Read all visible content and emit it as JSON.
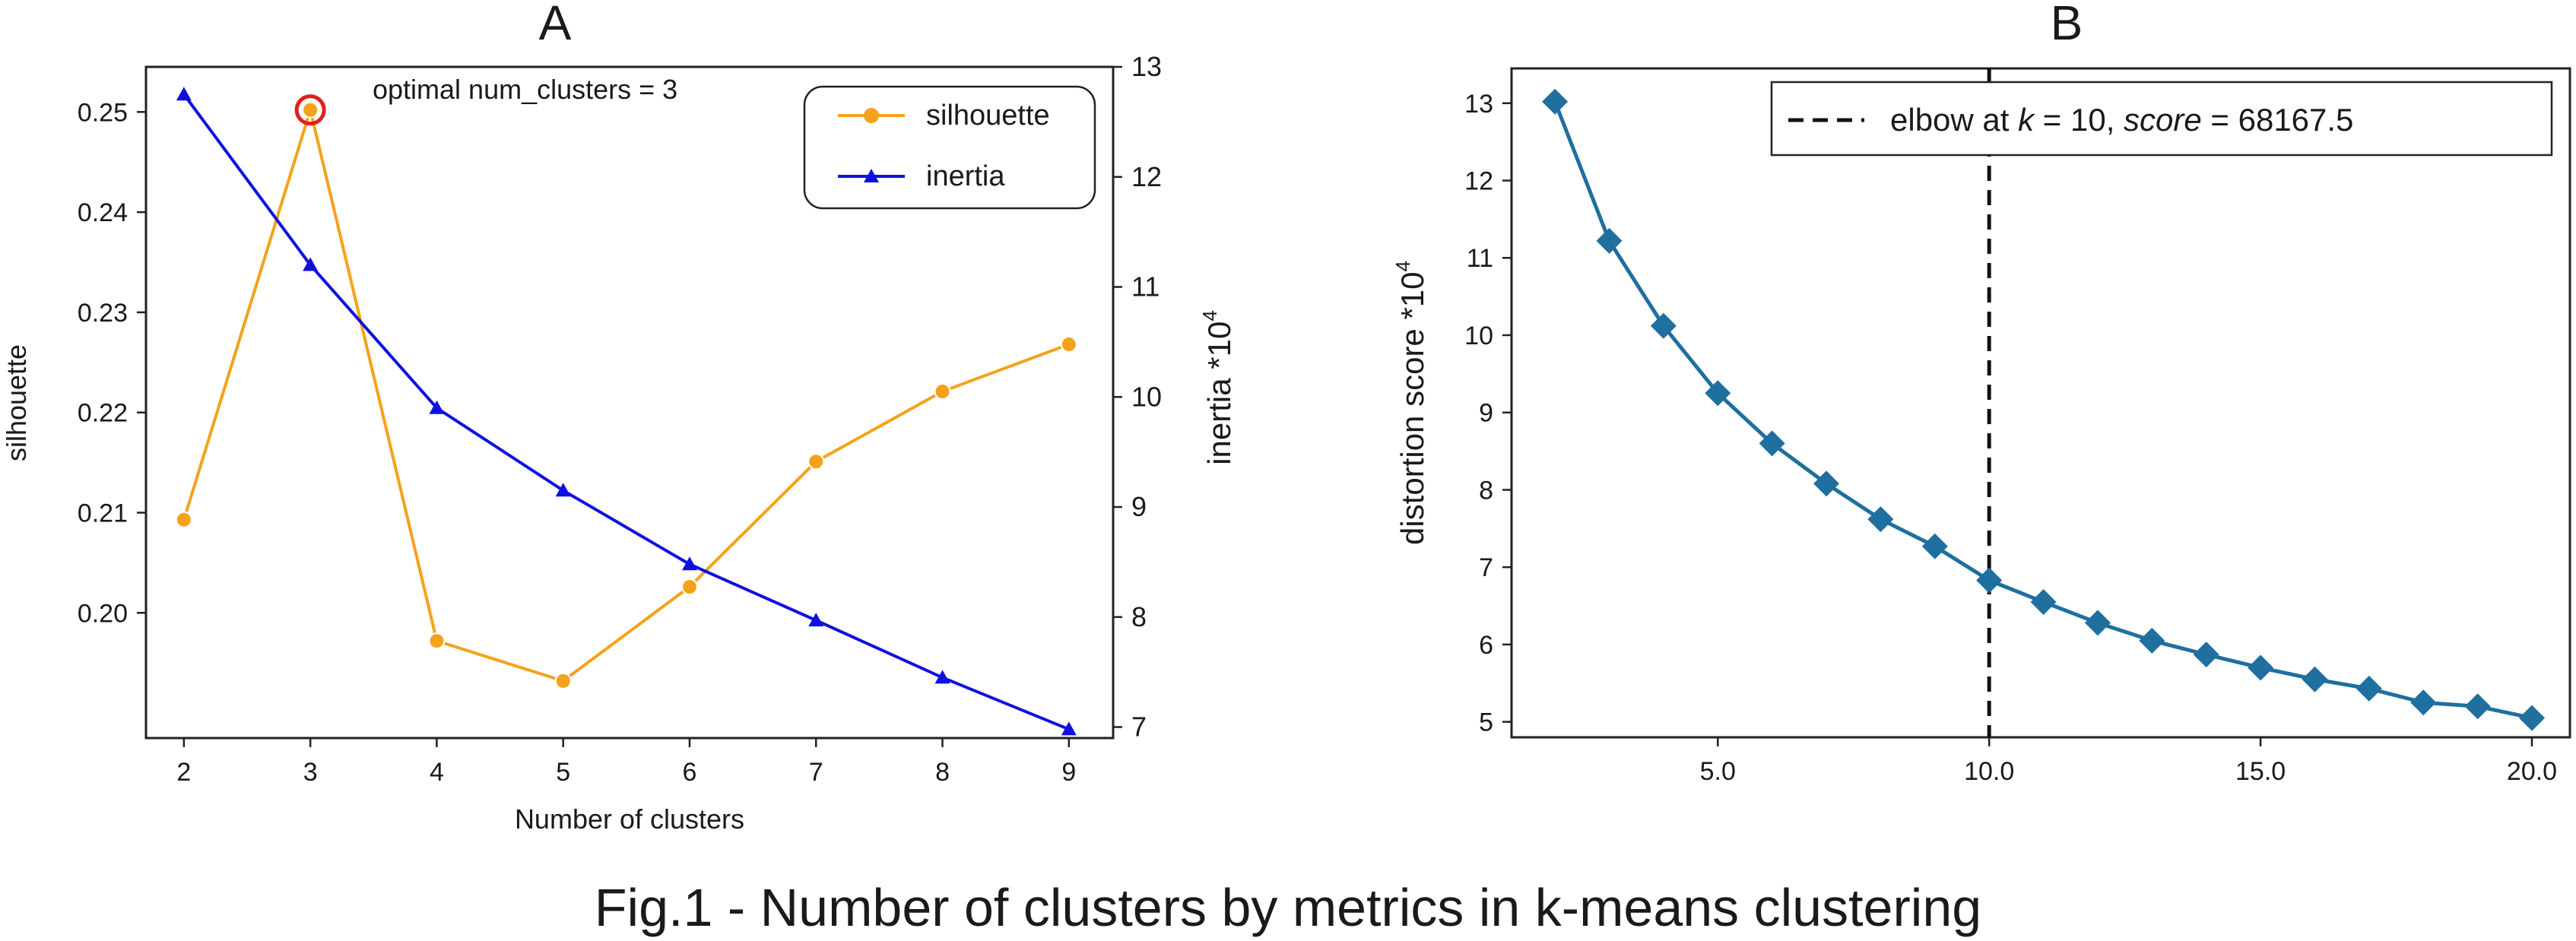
{
  "figure": {
    "caption": "Fig.1 - Number of clusters by metrics in k-means clustering"
  },
  "chart_data": [
    {
      "panel_label": "A",
      "type": "line",
      "xlabel": "Number of clusters",
      "ylabel": "silhouette",
      "y2label": "inertia  *10",
      "y2label_exp": "4",
      "annotation": "optimal num_clusters = 3",
      "legend": {
        "placement": "top-right"
      },
      "x": [
        2,
        3,
        4,
        5,
        6,
        7,
        8,
        9
      ],
      "x_ticks": [
        "2",
        "3",
        "4",
        "5",
        "6",
        "7",
        "8",
        "9"
      ],
      "xlim": [
        1.7,
        9.35
      ],
      "ylim": [
        0.1875,
        0.2545
      ],
      "y_ticks": [
        0.2,
        0.21,
        0.22,
        0.23,
        0.24,
        0.25
      ],
      "y_tick_labels": [
        "0.20",
        "0.21",
        "0.22",
        "0.23",
        "0.24",
        "0.25"
      ],
      "y2lim": [
        6.9,
        13.0
      ],
      "y2_ticks": [
        7,
        8,
        9,
        10,
        11,
        12,
        13
      ],
      "y2_tick_labels": [
        "7",
        "8",
        "9",
        "10",
        "11",
        "12",
        "13"
      ],
      "highlight": {
        "x": 3,
        "y": 0.2502,
        "color": "#e0201b"
      },
      "series": [
        {
          "name": "silhouette",
          "axis": "left",
          "color": "#f5a21b",
          "marker": "circle",
          "values": [
            0.2093,
            0.2502,
            0.1972,
            0.1932,
            0.2026,
            0.2151,
            0.2221,
            0.2268
          ]
        },
        {
          "name": "inertia",
          "axis": "right",
          "color": "#1010dd",
          "marker": "triangle",
          "values": [
            12.75,
            11.2,
            9.9,
            9.15,
            8.48,
            7.97,
            7.45,
            6.98
          ]
        }
      ],
      "grid": false
    },
    {
      "panel_label": "B",
      "type": "line",
      "xlabel": "",
      "ylabel": "distortion score  *10",
      "ylabel_exp": "4",
      "x": [
        2,
        3,
        4,
        5,
        6,
        7,
        8,
        9,
        10,
        11,
        12,
        13,
        14,
        15,
        16,
        17,
        18,
        19,
        20
      ],
      "x_ticks": [
        5,
        10,
        15,
        20
      ],
      "x_tick_labels": [
        "5.0",
        "10.0",
        "15.0",
        "20.0"
      ],
      "xlim": [
        1.2,
        20.7
      ],
      "ylim": [
        4.8,
        13.45
      ],
      "y_ticks": [
        5,
        6,
        7,
        8,
        9,
        10,
        11,
        12,
        13
      ],
      "y_tick_labels": [
        "5",
        "6",
        "7",
        "8",
        "9",
        "10",
        "11",
        "12",
        "13"
      ],
      "series": [
        {
          "name": "",
          "color": "#1f6f9f",
          "marker": "diamond",
          "values": [
            13.02,
            11.22,
            10.12,
            9.25,
            8.6,
            8.08,
            7.62,
            7.27,
            6.83,
            6.55,
            6.28,
            6.05,
            5.87,
            5.7,
            5.55,
            5.43,
            5.25,
            5.2,
            5.05
          ]
        }
      ],
      "elbow": {
        "x": 10,
        "color": "#111111"
      },
      "legend": {
        "placement": "top-right",
        "prefix": "elbow at ",
        "k_symbol": "k",
        "k_part": " = 10, ",
        "score_symbol": "score",
        "score_part": " = 68167.5"
      },
      "grid": false
    }
  ]
}
